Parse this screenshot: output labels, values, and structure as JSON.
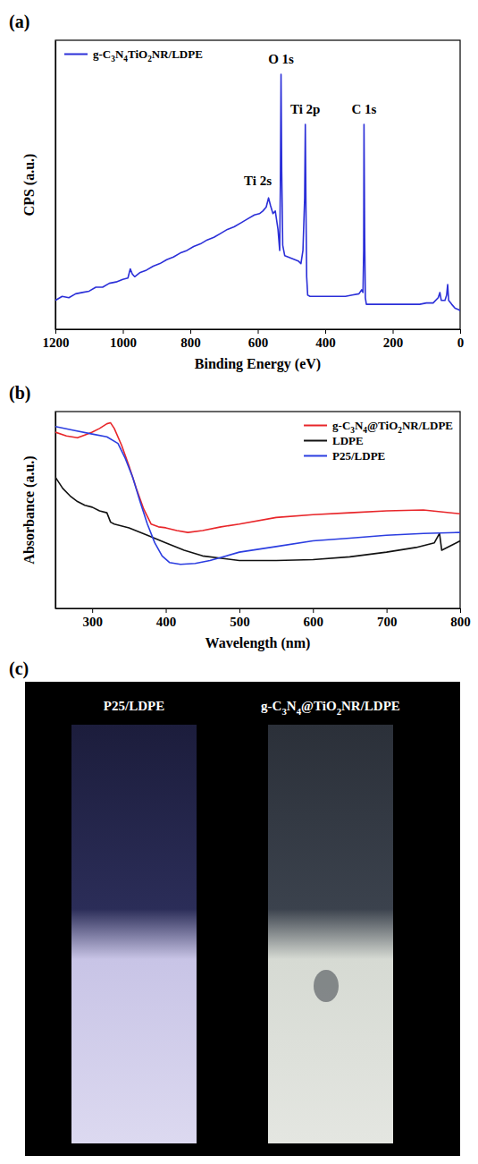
{
  "chart_data": [
    {
      "type": "line",
      "title": "(a)",
      "x_label": "Binding Energy (eV)",
      "y_label": "CPS (a.u.)",
      "xlim": [
        1200,
        0
      ],
      "ylim": [
        0,
        110
      ],
      "xticks": [
        1200,
        1000,
        800,
        600,
        400,
        200,
        0
      ],
      "tick_labels": "x",
      "legend": "upper left",
      "series": [
        {
          "name": "g-C3N4TiO2NR/LDPE",
          "color": "#2b2fd8",
          "x": [
            1200,
            1180,
            1160,
            1140,
            1120,
            1100,
            1080,
            1060,
            1040,
            1020,
            1000,
            985,
            978,
            972,
            965,
            950,
            930,
            910,
            890,
            870,
            850,
            830,
            810,
            790,
            770,
            750,
            730,
            710,
            690,
            670,
            650,
            630,
            610,
            595,
            585,
            575,
            568,
            562,
            555,
            548,
            540,
            535,
            533,
            531,
            529,
            526,
            520,
            510,
            500,
            490,
            480,
            472,
            466,
            461,
            459,
            457,
            455,
            452,
            445,
            420,
            400,
            380,
            360,
            340,
            320,
            300,
            292,
            288,
            286,
            285,
            283,
            281,
            278,
            260,
            240,
            220,
            200,
            180,
            160,
            140,
            120,
            100,
            80,
            65,
            60,
            56,
            45,
            40,
            37,
            34,
            25,
            15,
            5,
            0
          ],
          "values": [
            11,
            12.5,
            12,
            13.5,
            14,
            14.5,
            16,
            16,
            17.5,
            18,
            19,
            19.5,
            23,
            21,
            20,
            21.5,
            22.5,
            24,
            25,
            26.5,
            27.5,
            29,
            30,
            31.5,
            32.5,
            34,
            35,
            36.5,
            38,
            39,
            40.5,
            42,
            43.5,
            44,
            45,
            46.5,
            50,
            47,
            44,
            45,
            38,
            30,
            55,
            97,
            60,
            32,
            28,
            27.5,
            27,
            26.5,
            26,
            25,
            30,
            50,
            78,
            45,
            20,
            13,
            12.5,
            12.5,
            12.5,
            12.5,
            12.5,
            12.5,
            13,
            13.5,
            15,
            14,
            30,
            78,
            35,
            12,
            9.5,
            9.5,
            9.5,
            9.5,
            9.5,
            9.5,
            9.5,
            9.5,
            9.5,
            10,
            10,
            12,
            14,
            11,
            11,
            13,
            17,
            11,
            9.5,
            8,
            7.5,
            7
          ]
        }
      ],
      "annotations": [
        {
          "text": "O 1s",
          "x": 531,
          "y": 101
        },
        {
          "text": "Ti 2p",
          "x": 459,
          "y": 82
        },
        {
          "text": "C 1s",
          "x": 285,
          "y": 82
        },
        {
          "text": "Ti 2s",
          "x": 600,
          "y": 55
        }
      ]
    },
    {
      "type": "line",
      "title": "(b)",
      "x_label": "Wavelength (nm)",
      "y_label": "Absorbance (a.u.)",
      "xlim": [
        250,
        800
      ],
      "ylim": [
        0,
        105
      ],
      "xticks": [
        300,
        400,
        500,
        600,
        700,
        800
      ],
      "tick_labels": "x",
      "legend": "upper right",
      "series": [
        {
          "name": "g-C3N4@TiO2NR/LDPE",
          "color": "#e8262a",
          "x": [
            250,
            265,
            280,
            290,
            300,
            310,
            320,
            325,
            330,
            340,
            350,
            360,
            370,
            380,
            390,
            400,
            415,
            430,
            450,
            475,
            500,
            550,
            600,
            650,
            700,
            750,
            800
          ],
          "values": [
            94,
            92,
            91,
            92.5,
            94,
            96,
            98.5,
            99,
            96,
            87,
            76,
            64,
            53,
            45,
            43.5,
            43,
            41.5,
            40.5,
            41.5,
            43.5,
            45,
            48.5,
            50,
            51,
            52,
            52.5,
            50.5
          ]
        },
        {
          "name": "LDPE",
          "color": "#111111",
          "x": [
            250,
            260,
            270,
            280,
            290,
            300,
            310,
            320,
            325,
            330,
            350,
            375,
            400,
            425,
            450,
            500,
            550,
            600,
            650,
            700,
            740,
            765,
            772,
            775,
            790,
            800
          ],
          "values": [
            70,
            64,
            60,
            57,
            55,
            54,
            52,
            51,
            46,
            45,
            43,
            39,
            35,
            31,
            28,
            25.5,
            25.5,
            26,
            27.5,
            30,
            32.5,
            35,
            40,
            31,
            34,
            36
          ]
        },
        {
          "name": "P25/LDPE",
          "color": "#2b3de0",
          "x": [
            250,
            275,
            300,
            320,
            335,
            345,
            355,
            365,
            375,
            385,
            395,
            405,
            420,
            440,
            460,
            500,
            550,
            600,
            650,
            700,
            750,
            800
          ],
          "values": [
            97,
            95,
            93,
            91.5,
            88,
            80,
            70,
            57,
            45,
            35,
            28,
            24.5,
            23.5,
            24,
            25.5,
            30,
            33,
            36,
            37.5,
            39,
            40,
            40.5
          ]
        }
      ]
    }
  ],
  "photo": {
    "title": "(c)",
    "labels": [
      "P25/LDPE",
      "g-C3N4@TiO2NR/LDPE"
    ]
  }
}
